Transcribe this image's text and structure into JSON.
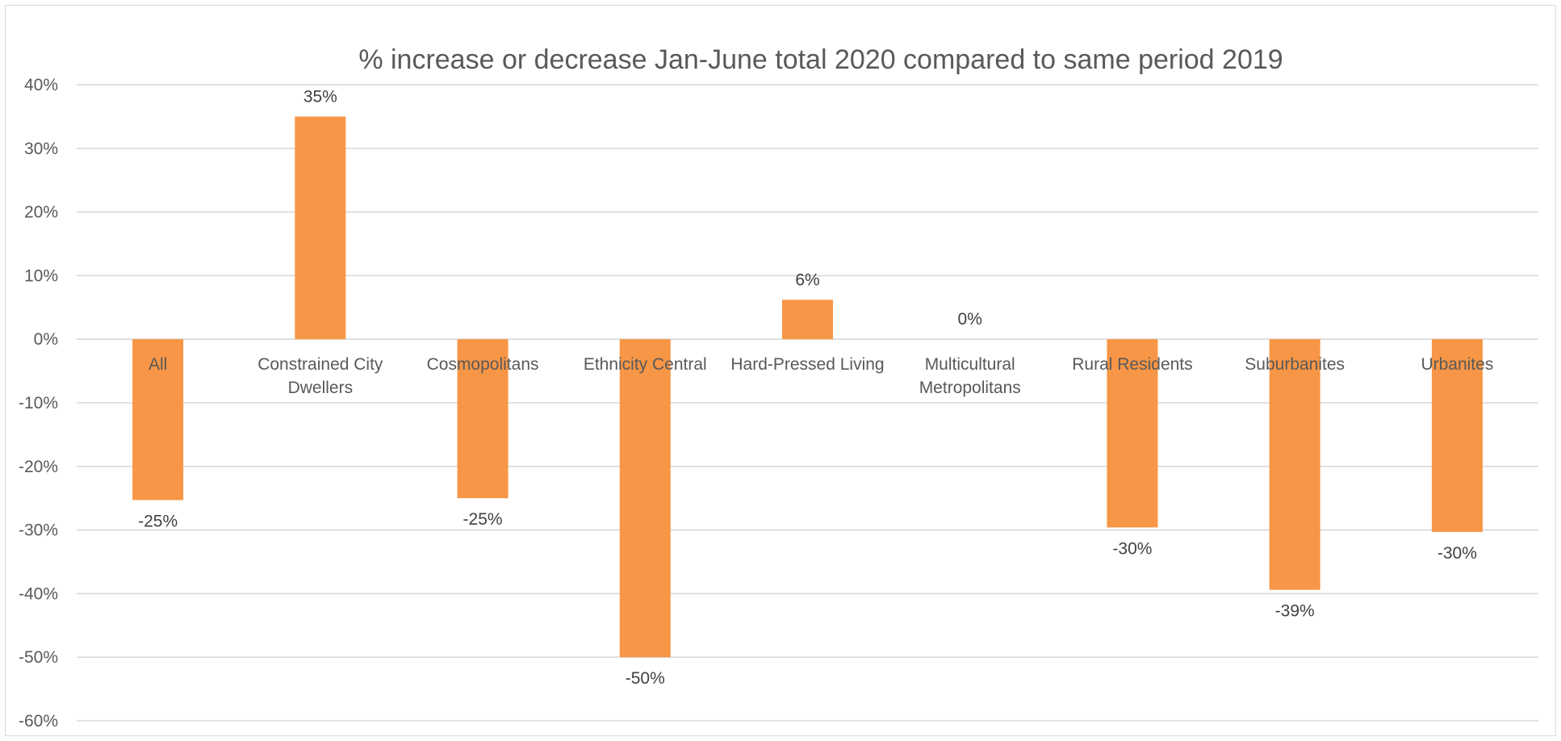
{
  "chart_data": {
    "type": "bar",
    "title": "% increase or decrease Jan-June total 2020 compared to same period 2019",
    "xlabel": "",
    "ylabel": "",
    "ylim": [
      -60,
      40
    ],
    "yticks": [
      40,
      30,
      20,
      10,
      0,
      -10,
      -20,
      -30,
      -40,
      -50,
      -60
    ],
    "ytick_labels": [
      "40%",
      "30%",
      "20%",
      "10%",
      "0%",
      "-10%",
      "-20%",
      "-30%",
      "-40%",
      "-50%",
      "-60%"
    ],
    "grid": true,
    "legend": "none",
    "bar_color": "#F79646",
    "categories": [
      [
        "All"
      ],
      [
        "Constrained City",
        "Dwellers"
      ],
      [
        "Cosmopolitans"
      ],
      [
        "Ethnicity Central"
      ],
      [
        "Hard-Pressed Living"
      ],
      [
        "Multicultural",
        "Metropolitans"
      ],
      [
        "Rural Residents"
      ],
      [
        "Suburbanites"
      ],
      [
        "Urbanites"
      ]
    ],
    "values": [
      -25.3,
      35,
      -25,
      -50,
      6.2,
      0,
      -29.6,
      -39.4,
      -30.3
    ],
    "data_labels": [
      "-25%",
      "35%",
      "-25%",
      "-50%",
      "6%",
      "0%",
      "-30%",
      "-39%",
      "-30%"
    ]
  }
}
